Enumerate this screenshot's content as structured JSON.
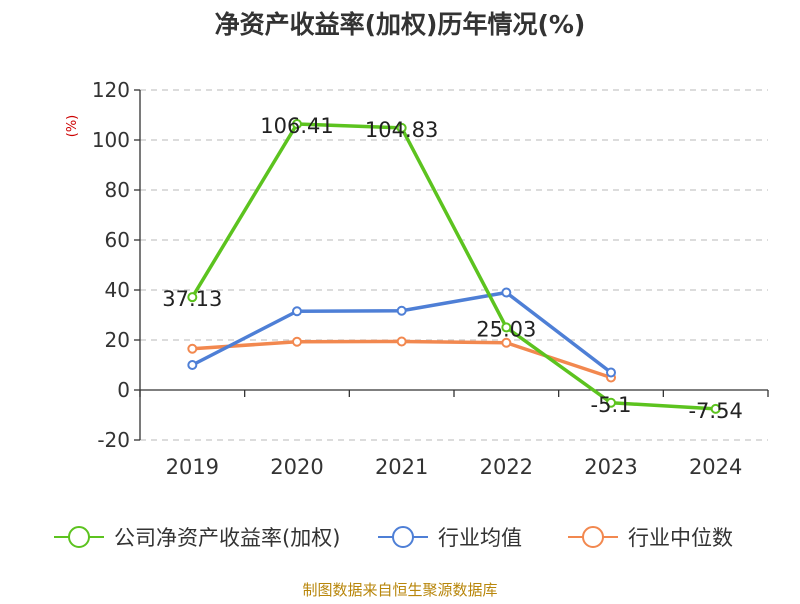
{
  "chart_data": {
    "type": "line",
    "title": "净资产收益率(加权)历年情况(%)",
    "ylabel": "(%)",
    "xlabel": "",
    "categories": [
      "2019",
      "2020",
      "2021",
      "2022",
      "2023",
      "2024"
    ],
    "ylim": [
      -20,
      120
    ],
    "yticks": [
      -20,
      0,
      20,
      40,
      60,
      80,
      100,
      120
    ],
    "grid": true,
    "legend_position": "bottom",
    "series": [
      {
        "name": "公司净资产收益率(加权)",
        "color": "#5cc31f",
        "values": [
          37.13,
          106.41,
          104.83,
          25.03,
          -5.1,
          -7.54
        ],
        "labels": [
          "37.13",
          "106.41",
          "104.83",
          "25.03",
          "-5.1",
          "-7.54"
        ]
      },
      {
        "name": "行业均值",
        "color": "#4e7fd6",
        "values": [
          10,
          31.5,
          31.7,
          39,
          7,
          null
        ]
      },
      {
        "name": "行业中位数",
        "color": "#f2884f",
        "values": [
          16.5,
          19.3,
          19.4,
          18.9,
          5,
          null
        ]
      }
    ]
  },
  "source_text": "制图数据来自恒生聚源数据库"
}
